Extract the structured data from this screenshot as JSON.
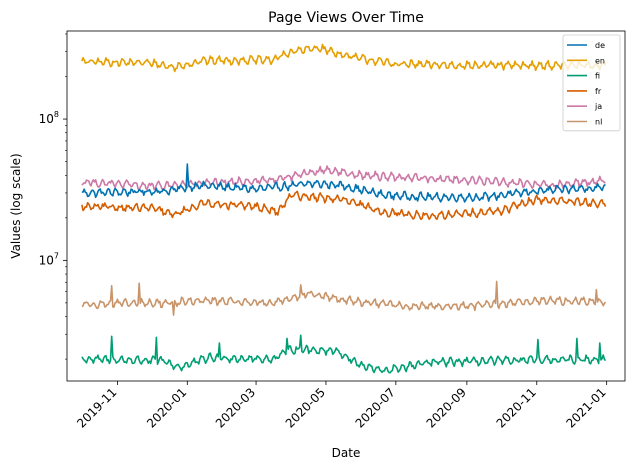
{
  "chart_data": {
    "type": "line",
    "title": "Page Views Over Time",
    "xlabel": "Date",
    "ylabel": "Values (log scale)",
    "y_scale": "log",
    "ylim": [
      1400000,
      420000000
    ],
    "xlim": [
      "2019-09-18",
      "2021-01-17"
    ],
    "x_start": "2019-10-01",
    "x_end": "2020-12-31",
    "grid": false,
    "legend_position": "top-right",
    "x_ticks": [
      "2019-11",
      "2020-01",
      "2020-03",
      "2020-05",
      "2020-07",
      "2020-09",
      "2020-11",
      "2021-01"
    ],
    "y_ticks": [
      {
        "value": 10000000,
        "base": "10",
        "exp": "7"
      },
      {
        "value": 100000000,
        "base": "10",
        "exp": "8"
      }
    ],
    "series": [
      {
        "name": "de",
        "color": "#0072b2",
        "keypoints": [
          [
            "2019-10-01",
            30000000
          ],
          [
            "2019-12-15",
            31000000
          ],
          [
            "2020-01-10",
            34000000
          ],
          [
            "2020-03-01",
            32000000
          ],
          [
            "2020-04-20",
            35000000
          ],
          [
            "2020-05-15",
            34000000
          ],
          [
            "2020-06-20",
            29000000
          ],
          [
            "2020-08-01",
            28000000
          ],
          [
            "2020-09-15",
            28000000
          ],
          [
            "2020-11-01",
            31000000
          ],
          [
            "2020-12-31",
            33000000
          ]
        ],
        "spikes": [
          [
            "2020-01-01",
            48000000
          ]
        ]
      },
      {
        "name": "en",
        "color": "#e69f00",
        "keypoints": [
          [
            "2019-10-01",
            255000000
          ],
          [
            "2019-12-01",
            250000000
          ],
          [
            "2019-12-20",
            232000000
          ],
          [
            "2020-01-15",
            260000000
          ],
          [
            "2020-03-15",
            262000000
          ],
          [
            "2020-04-01",
            300000000
          ],
          [
            "2020-04-25",
            320000000
          ],
          [
            "2020-05-20",
            278000000
          ],
          [
            "2020-07-01",
            245000000
          ],
          [
            "2020-09-01",
            240000000
          ],
          [
            "2020-10-15",
            240000000
          ],
          [
            "2020-12-31",
            240000000
          ]
        ],
        "spikes": []
      },
      {
        "name": "fi",
        "color": "#009e73",
        "keypoints": [
          [
            "2019-10-01",
            2000000
          ],
          [
            "2019-12-10",
            1950000
          ],
          [
            "2019-12-25",
            1750000
          ],
          [
            "2020-01-20",
            2050000
          ],
          [
            "2020-03-15",
            2000000
          ],
          [
            "2020-04-01",
            2350000
          ],
          [
            "2020-05-10",
            2300000
          ],
          [
            "2020-06-01",
            1800000
          ],
          [
            "2020-06-20",
            1650000
          ],
          [
            "2020-08-01",
            1900000
          ],
          [
            "2020-10-01",
            1950000
          ],
          [
            "2020-12-31",
            2000000
          ]
        ],
        "spikes": [
          [
            "2019-10-27",
            2900000
          ],
          [
            "2019-12-05",
            2850000
          ],
          [
            "2020-01-29",
            2600000
          ],
          [
            "2020-03-28",
            2800000
          ],
          [
            "2020-04-09",
            2950000
          ],
          [
            "2020-11-02",
            2750000
          ],
          [
            "2020-12-06",
            2800000
          ],
          [
            "2020-12-26",
            2600000
          ]
        ]
      },
      {
        "name": "fr",
        "color": "#d55e00",
        "keypoints": [
          [
            "2019-10-01",
            24000000
          ],
          [
            "2019-12-01",
            23500000
          ],
          [
            "2019-12-20",
            21000000
          ],
          [
            "2020-01-15",
            25500000
          ],
          [
            "2020-03-01",
            24000000
          ],
          [
            "2020-03-20",
            22000000
          ],
          [
            "2020-04-01",
            29000000
          ],
          [
            "2020-05-15",
            27000000
          ],
          [
            "2020-06-20",
            22000000
          ],
          [
            "2020-08-01",
            20500000
          ],
          [
            "2020-10-01",
            22500000
          ],
          [
            "2020-11-01",
            27000000
          ],
          [
            "2020-12-31",
            25000000
          ]
        ],
        "spikes": []
      },
      {
        "name": "ja",
        "color": "#cc79a7",
        "keypoints": [
          [
            "2019-10-01",
            36000000
          ],
          [
            "2019-12-01",
            33500000
          ],
          [
            "2020-01-15",
            35000000
          ],
          [
            "2020-03-15",
            37000000
          ],
          [
            "2020-05-01",
            44000000
          ],
          [
            "2020-06-01",
            40000000
          ],
          [
            "2020-08-01",
            38000000
          ],
          [
            "2020-10-01",
            36000000
          ],
          [
            "2020-11-15",
            34000000
          ],
          [
            "2020-12-31",
            37000000
          ]
        ],
        "spikes": []
      },
      {
        "name": "nl",
        "color": "#c8956b",
        "keypoints": [
          [
            "2019-10-01",
            4900000
          ],
          [
            "2019-12-15",
            5000000
          ],
          [
            "2020-01-15",
            5200000
          ],
          [
            "2020-03-15",
            5000000
          ],
          [
            "2020-04-15",
            5800000
          ],
          [
            "2020-05-20",
            5200000
          ],
          [
            "2020-07-15",
            4700000
          ],
          [
            "2020-09-15",
            4800000
          ],
          [
            "2020-11-01",
            5200000
          ],
          [
            "2020-12-31",
            5100000
          ]
        ],
        "spikes": [
          [
            "2019-10-27",
            6600000
          ],
          [
            "2019-11-20",
            6900000
          ],
          [
            "2019-12-20",
            4100000
          ],
          [
            "2020-04-09",
            6700000
          ],
          [
            "2020-09-27",
            7100000
          ],
          [
            "2020-12-23",
            6200000
          ]
        ]
      }
    ]
  }
}
